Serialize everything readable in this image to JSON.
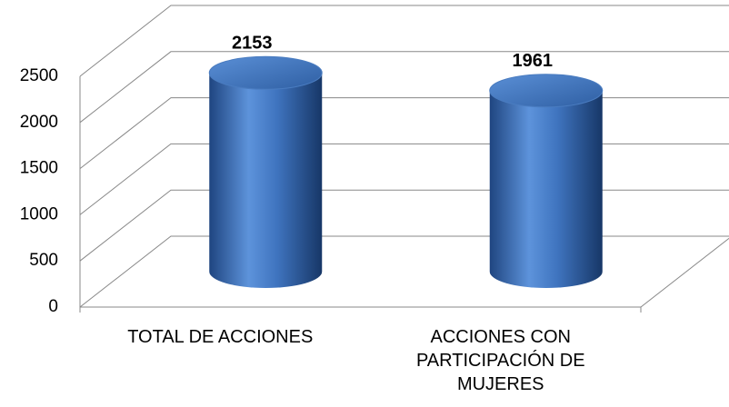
{
  "chart_data": {
    "type": "bar3d",
    "categories": [
      "TOTAL DE ACCIONES",
      "ACCIONES CON PARTICIPACIÓN DE MUJERES"
    ],
    "values": [
      2153,
      1961
    ],
    "color": "#4f81bd",
    "ylim": [
      0,
      2500
    ],
    "yticks": [
      0,
      500,
      1000,
      1500,
      2000,
      2500
    ],
    "grid": true
  }
}
